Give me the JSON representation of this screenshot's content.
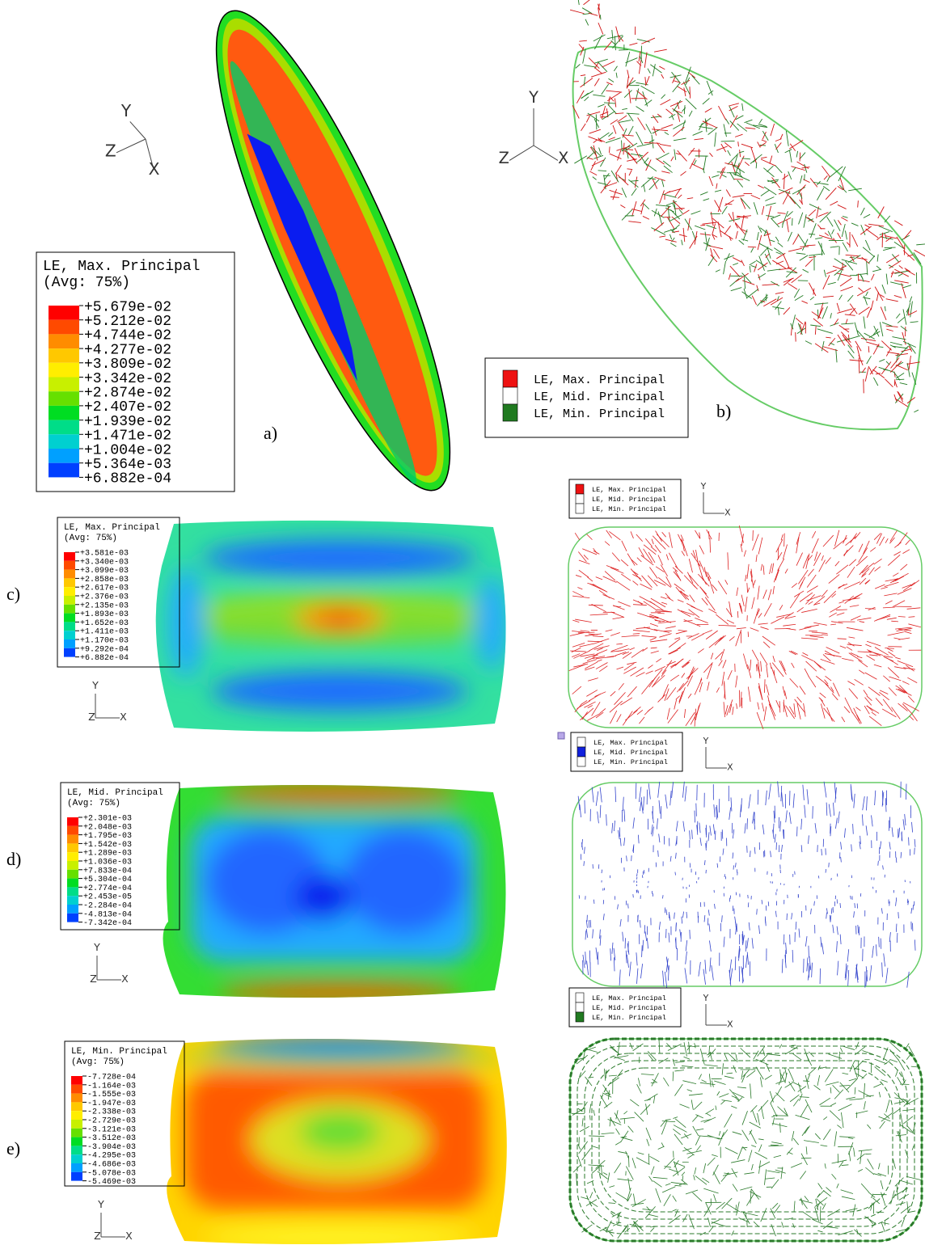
{
  "panel_a": {
    "label": "a)",
    "legend": {
      "title": "LE, Max. Principal",
      "subtitle": "(Avg: 75%)",
      "ticks": [
        "+5.679e-02",
        "+5.212e-02",
        "+4.744e-02",
        "+4.277e-02",
        "+3.809e-02",
        "+3.342e-02",
        "+2.874e-02",
        "+2.407e-02",
        "+1.939e-02",
        "+1.471e-02",
        "+1.004e-02",
        "+5.364e-03",
        "+6.882e-04"
      ]
    },
    "triad": {
      "y": "Y",
      "z": "Z",
      "x": "X"
    }
  },
  "panel_b": {
    "label": "b)",
    "vector_legend": [
      "LE, Max. Principal",
      "LE, Mid. Principal",
      "LE, Min. Principal"
    ],
    "triad": {
      "y": "Y",
      "z": "Z",
      "x": "X"
    }
  },
  "panel_c": {
    "label": "c)",
    "legend": {
      "title": "LE, Max. Principal",
      "subtitle": "(Avg: 75%)",
      "ticks": [
        "+3.581e-03",
        "+3.340e-03",
        "+3.099e-03",
        "+2.858e-03",
        "+2.617e-03",
        "+2.376e-03",
        "+2.135e-03",
        "+1.893e-03",
        "+1.652e-03",
        "+1.411e-03",
        "+1.170e-03",
        "+9.292e-04",
        "+6.882e-04"
      ]
    },
    "triad": {
      "y": "Y",
      "z": "Z",
      "x": "X"
    },
    "vector_legend": [
      "LE, Max. Principal",
      "LE, Mid. Principal",
      "LE, Min. Principal"
    ],
    "vector_triad": {
      "y": "Y",
      "x": "X"
    }
  },
  "panel_d": {
    "label": "d)",
    "legend": {
      "title": "LE, Mid. Principal",
      "subtitle": "(Avg: 75%)",
      "ticks": [
        "+2.301e-03",
        "+2.048e-03",
        "+1.795e-03",
        "+1.542e-03",
        "+1.289e-03",
        "+1.036e-03",
        "+7.833e-04",
        "+5.304e-04",
        "+2.774e-04",
        "+2.453e-05",
        "-2.284e-04",
        "-4.813e-04",
        "-7.342e-04"
      ]
    },
    "triad": {
      "y": "Y",
      "z": "Z",
      "x": "X"
    },
    "vector_legend": [
      "LE, Max. Principal",
      "LE, Mid. Principal",
      "LE, Min. Principal"
    ],
    "vector_triad": {
      "y": "Y",
      "x": "X"
    }
  },
  "panel_e": {
    "label": "e)",
    "legend": {
      "title": "LE, Min. Principal",
      "subtitle": "(Avg: 75%)",
      "ticks": [
        "-7.728e-04",
        "-1.164e-03",
        "-1.555e-03",
        "-1.947e-03",
        "-2.338e-03",
        "-2.729e-03",
        "-3.121e-03",
        "-3.512e-03",
        "-3.904e-03",
        "-4.295e-03",
        "-4.686e-03",
        "-5.078e-03",
        "-5.469e-03"
      ]
    },
    "triad": {
      "y": "Y",
      "z": "Z",
      "x": "X"
    },
    "vector_legend": [
      "LE, Max. Principal",
      "LE, Mid. Principal",
      "LE, Min. Principal"
    ],
    "vector_triad": {
      "y": "Y",
      "x": "X"
    }
  }
}
